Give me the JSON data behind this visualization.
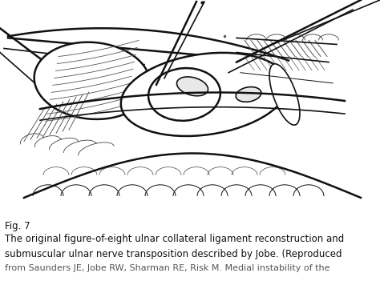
{
  "fig_label": "Fig. 7",
  "caption_line1": "The original figure-of-eight ulnar collateral ligament reconstruction and",
  "caption_line2": "submuscular ulnar nerve transposition described by Jobe. (Reproduced",
  "caption_line3": "from Saunders JE, Jobe RW, Sharman RE, Risk M. Medial instability of the",
  "background_color": "#ffffff",
  "fig_label_fontsize": 8.5,
  "caption_fontsize": 8.5
}
